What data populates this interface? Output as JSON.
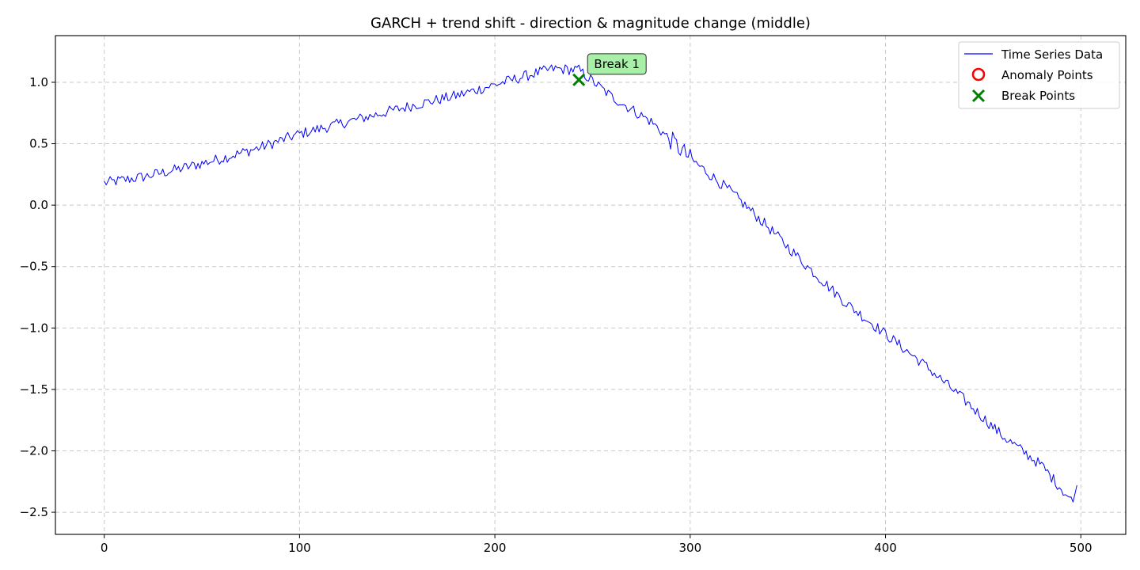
{
  "chart_data": {
    "type": "line",
    "title": "GARCH + trend shift - direction & magnitude change (middle)",
    "xlabel": "",
    "ylabel": "",
    "xlim": [
      -25,
      523
    ],
    "ylim": [
      -2.68,
      1.38
    ],
    "xticks": [
      0,
      100,
      200,
      300,
      400,
      500
    ],
    "xtick_labels": [
      "0",
      "100",
      "200",
      "300",
      "400",
      "500"
    ],
    "yticks": [
      1.0,
      0.5,
      0.0,
      -0.5,
      -1.0,
      -1.5,
      -2.0,
      -2.5
    ],
    "ytick_labels": [
      "1.0",
      "0.5",
      "0.0",
      "−0.5",
      "−1.0",
      "−1.5",
      "−2.0",
      "−2.5"
    ],
    "grid": true,
    "legend_position": "top-right",
    "series": [
      {
        "name": "Time Series Data",
        "color": "#0000ff",
        "style": "line",
        "x_start": 0,
        "x_step": 1,
        "trend_points": [
          [
            0,
            0.18
          ],
          [
            20,
            0.23
          ],
          [
            40,
            0.3
          ],
          [
            60,
            0.38
          ],
          [
            80,
            0.47
          ],
          [
            100,
            0.58
          ],
          [
            120,
            0.66
          ],
          [
            140,
            0.74
          ],
          [
            160,
            0.82
          ],
          [
            180,
            0.89
          ],
          [
            200,
            0.98
          ],
          [
            220,
            1.07
          ],
          [
            230,
            1.11
          ],
          [
            243,
            1.1
          ],
          [
            260,
            0.88
          ],
          [
            280,
            0.68
          ],
          [
            300,
            0.38
          ],
          [
            320,
            0.12
          ],
          [
            340,
            -0.18
          ],
          [
            360,
            -0.5
          ],
          [
            380,
            -0.8
          ],
          [
            400,
            -1.05
          ],
          [
            420,
            -1.3
          ],
          [
            440,
            -1.58
          ],
          [
            460,
            -1.88
          ],
          [
            480,
            -2.12
          ],
          [
            496,
            -2.42
          ],
          [
            498,
            -2.28
          ]
        ],
        "noise_amplitude": 0.045
      }
    ],
    "anomaly_points": {
      "name": "Anomaly Points",
      "color": "#ff0000",
      "marker": "circle-open",
      "points": []
    },
    "break_points": {
      "name": "Break Points",
      "color": "#008000",
      "marker": "x",
      "points": [
        {
          "x": 243,
          "y": 1.02
        }
      ]
    },
    "annotations": [
      {
        "text": "Break 1",
        "x": 243,
        "y": 1.02,
        "background": "#a8f0a8"
      }
    ]
  }
}
